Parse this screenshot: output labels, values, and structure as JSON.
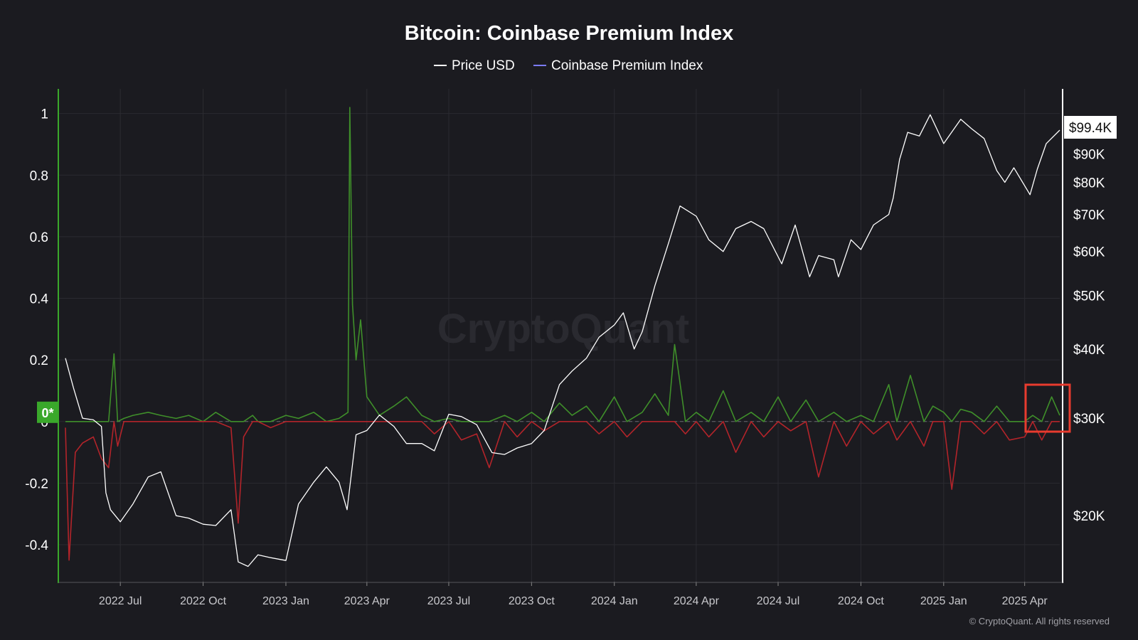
{
  "chart_data": {
    "type": "line",
    "title": "Bitcoin: Coinbase Premium Index",
    "watermark": "CryptoQuant",
    "footer": "© CryptoQuant. All rights reserved",
    "legend": [
      {
        "label": "Price USD",
        "color": "#ffffff"
      },
      {
        "label": "Coinbase Premium Index",
        "color": "#7b7bff"
      }
    ],
    "legend_placement": "top-center",
    "left_axis": {
      "ticks": [
        "1",
        "0.8",
        "0.6",
        "0.4",
        "0.2",
        "0",
        "-0.2",
        "-0.4"
      ],
      "values": [
        1,
        0.8,
        0.6,
        0.4,
        0.2,
        0,
        -0.2,
        -0.4
      ],
      "range": [
        -0.52,
        1.08
      ]
    },
    "right_axis": {
      "ticks": [
        "$90K",
        "$80K",
        "$70K",
        "$60K",
        "$50K",
        "$40K",
        "$30K",
        "$20K"
      ],
      "values": [
        90000,
        80000,
        70000,
        60000,
        50000,
        40000,
        30000,
        20000
      ],
      "scale": "log",
      "range": [
        15200,
        118000
      ]
    },
    "x_ticks": [
      "2022 Jul",
      "2022 Oct",
      "2023 Jan",
      "2023 Apr",
      "2023 Jul",
      "2023 Oct",
      "2024 Jan",
      "2024 Apr",
      "2024 Jul",
      "2024 Oct",
      "2025 Jan",
      "2025 Apr"
    ],
    "x_tick_dates": [
      "2022-07-01",
      "2022-10-01",
      "2023-01-01",
      "2023-04-01",
      "2023-07-01",
      "2023-10-01",
      "2024-01-01",
      "2024-04-01",
      "2024-07-01",
      "2024-10-01",
      "2025-01-01",
      "2025-04-01"
    ],
    "x_range": [
      "2022-05-01",
      "2025-05-10"
    ],
    "zero_badge": "0*",
    "last_price_label": "$99.4K",
    "colors": {
      "positive": "#3f8f2a",
      "negative": "#b3242a",
      "price": "#ffffff",
      "grid": "#2b2b31",
      "highlight": "#e83b2e",
      "badge": "#3aa82b"
    },
    "grid": true,
    "price_series": {
      "name": "Price USD",
      "x": [
        "2022-05-01",
        "2022-05-10",
        "2022-05-20",
        "2022-06-01",
        "2022-06-10",
        "2022-06-15",
        "2022-06-20",
        "2022-07-01",
        "2022-07-15",
        "2022-08-01",
        "2022-08-15",
        "2022-09-01",
        "2022-09-15",
        "2022-10-01",
        "2022-10-15",
        "2022-11-01",
        "2022-11-09",
        "2022-11-20",
        "2022-12-01",
        "2022-12-15",
        "2023-01-01",
        "2023-01-15",
        "2023-02-01",
        "2023-02-15",
        "2023-03-01",
        "2023-03-10",
        "2023-03-20",
        "2023-04-01",
        "2023-04-15",
        "2023-05-01",
        "2023-05-15",
        "2023-06-01",
        "2023-06-15",
        "2023-07-01",
        "2023-07-15",
        "2023-08-01",
        "2023-08-18",
        "2023-09-01",
        "2023-09-15",
        "2023-10-01",
        "2023-10-15",
        "2023-11-01",
        "2023-11-15",
        "2023-12-01",
        "2023-12-15",
        "2024-01-01",
        "2024-01-11",
        "2024-01-23",
        "2024-02-01",
        "2024-02-15",
        "2024-03-01",
        "2024-03-14",
        "2024-04-01",
        "2024-04-15",
        "2024-05-01",
        "2024-05-15",
        "2024-06-01",
        "2024-06-15",
        "2024-07-05",
        "2024-07-20",
        "2024-08-05",
        "2024-08-15",
        "2024-09-01",
        "2024-09-06",
        "2024-09-20",
        "2024-10-01",
        "2024-10-15",
        "2024-11-01",
        "2024-11-06",
        "2024-11-13",
        "2024-11-22",
        "2024-12-05",
        "2024-12-17",
        "2025-01-01",
        "2025-01-20",
        "2025-02-01",
        "2025-02-15",
        "2025-03-01",
        "2025-03-10",
        "2025-03-20",
        "2025-04-07",
        "2025-04-15",
        "2025-04-25",
        "2025-05-10"
      ],
      "values": [
        38500,
        34000,
        30000,
        29800,
        29000,
        22000,
        20500,
        19500,
        21000,
        23500,
        24000,
        20000,
        19800,
        19300,
        19200,
        20500,
        16500,
        16200,
        17000,
        16800,
        16600,
        21000,
        23000,
        24500,
        23000,
        20500,
        28000,
        28500,
        30400,
        29000,
        27000,
        27000,
        26200,
        30500,
        30200,
        29200,
        26000,
        25800,
        26500,
        27000,
        28500,
        34500,
        36500,
        38500,
        42000,
        44200,
        46500,
        40000,
        43000,
        52000,
        62000,
        72500,
        69500,
        63000,
        60000,
        66000,
        68000,
        66000,
        57000,
        67000,
        54000,
        59000,
        58000,
        54000,
        63000,
        60500,
        67000,
        70000,
        75000,
        88000,
        98500,
        97000,
        106000,
        94000,
        104000,
        100000,
        96000,
        84000,
        80000,
        85000,
        76000,
        84500,
        94000,
        99400
      ]
    },
    "premium_series": {
      "name": "Coinbase Premium Index",
      "x": [
        "2022-05-01",
        "2022-05-05",
        "2022-05-12",
        "2022-05-20",
        "2022-06-01",
        "2022-06-10",
        "2022-06-18",
        "2022-06-24",
        "2022-06-28",
        "2022-07-05",
        "2022-07-15",
        "2022-08-01",
        "2022-08-15",
        "2022-09-01",
        "2022-09-15",
        "2022-10-01",
        "2022-10-15",
        "2022-11-01",
        "2022-11-09",
        "2022-11-15",
        "2022-11-25",
        "2022-12-01",
        "2022-12-15",
        "2023-01-01",
        "2023-01-15",
        "2023-02-01",
        "2023-02-15",
        "2023-03-01",
        "2023-03-11",
        "2023-03-13",
        "2023-03-16",
        "2023-03-20",
        "2023-03-25",
        "2023-04-01",
        "2023-04-15",
        "2023-05-01",
        "2023-05-15",
        "2023-06-01",
        "2023-06-15",
        "2023-07-01",
        "2023-07-15",
        "2023-08-01",
        "2023-08-15",
        "2023-09-01",
        "2023-09-15",
        "2023-10-01",
        "2023-10-15",
        "2023-11-01",
        "2023-11-15",
        "2023-12-01",
        "2023-12-15",
        "2024-01-01",
        "2024-01-15",
        "2024-02-01",
        "2024-02-15",
        "2024-03-01",
        "2024-03-08",
        "2024-03-20",
        "2024-04-01",
        "2024-04-15",
        "2024-05-01",
        "2024-05-15",
        "2024-06-01",
        "2024-06-15",
        "2024-07-01",
        "2024-07-15",
        "2024-08-01",
        "2024-08-15",
        "2024-09-01",
        "2024-09-15",
        "2024-10-01",
        "2024-10-15",
        "2024-11-01",
        "2024-11-10",
        "2024-11-25",
        "2024-12-10",
        "2024-12-20",
        "2025-01-01",
        "2025-01-10",
        "2025-01-20",
        "2025-02-01",
        "2025-02-15",
        "2025-03-01",
        "2025-03-15",
        "2025-04-01",
        "2025-04-10",
        "2025-04-20",
        "2025-05-01",
        "2025-05-10"
      ],
      "values": [
        -0.02,
        -0.45,
        -0.1,
        -0.07,
        -0.05,
        -0.12,
        -0.15,
        0.22,
        -0.08,
        0.01,
        0.02,
        0.03,
        0.02,
        0.01,
        0.02,
        0.0,
        0.03,
        -0.02,
        -0.33,
        -0.05,
        0.02,
        0.0,
        -0.02,
        0.02,
        0.01,
        0.03,
        0.0,
        0.01,
        0.03,
        1.02,
        0.38,
        0.2,
        0.33,
        0.08,
        0.02,
        0.05,
        0.08,
        0.02,
        -0.04,
        0.01,
        -0.06,
        -0.04,
        -0.15,
        0.02,
        -0.05,
        0.03,
        -0.03,
        0.06,
        0.02,
        0.05,
        -0.04,
        0.08,
        -0.05,
        0.03,
        0.09,
        0.02,
        0.25,
        -0.04,
        0.03,
        -0.05,
        0.1,
        -0.1,
        0.03,
        -0.05,
        0.08,
        -0.03,
        0.07,
        -0.18,
        0.03,
        -0.08,
        0.02,
        -0.04,
        0.12,
        -0.06,
        0.15,
        -0.08,
        0.05,
        0.03,
        -0.22,
        0.04,
        0.03,
        -0.04,
        0.05,
        -0.06,
        -0.05,
        0.02,
        -0.06,
        0.08,
        0.02
      ]
    }
  }
}
